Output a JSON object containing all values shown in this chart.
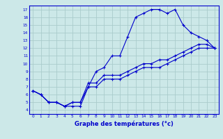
{
  "title": "Graphe des températures (°c)",
  "bg_color": "#cce8e8",
  "grid_color": "#aacccc",
  "line_color": "#0000cc",
  "xlim": [
    -0.5,
    23.5
  ],
  "ylim": [
    3.5,
    17.5
  ],
  "xticks": [
    0,
    1,
    2,
    3,
    4,
    5,
    6,
    7,
    8,
    9,
    10,
    11,
    12,
    13,
    14,
    15,
    16,
    17,
    18,
    19,
    20,
    21,
    22,
    23
  ],
  "yticks": [
    4,
    5,
    6,
    7,
    8,
    9,
    10,
    11,
    12,
    13,
    14,
    15,
    16,
    17
  ],
  "line1_y": [
    6.5,
    6.0,
    5.0,
    5.0,
    4.5,
    4.5,
    4.5,
    7.0,
    9.0,
    9.5,
    11.0,
    11.0,
    13.5,
    16.0,
    16.5,
    17.0,
    17.0,
    16.5,
    17.0,
    15.0,
    14.0,
    13.5,
    13.0,
    12.0
  ],
  "line2_y": [
    6.5,
    6.0,
    5.0,
    5.0,
    4.5,
    5.0,
    5.0,
    7.5,
    7.5,
    8.5,
    8.5,
    8.5,
    9.0,
    9.5,
    10.0,
    10.0,
    10.5,
    10.5,
    11.0,
    11.5,
    12.0,
    12.5,
    12.5,
    12.0
  ],
  "line3_y": [
    6.5,
    6.0,
    5.0,
    5.0,
    4.5,
    5.0,
    5.0,
    7.0,
    7.0,
    8.0,
    8.0,
    8.0,
    8.5,
    9.0,
    9.5,
    9.5,
    9.5,
    10.0,
    10.5,
    11.0,
    11.5,
    12.0,
    12.0,
    12.0
  ]
}
